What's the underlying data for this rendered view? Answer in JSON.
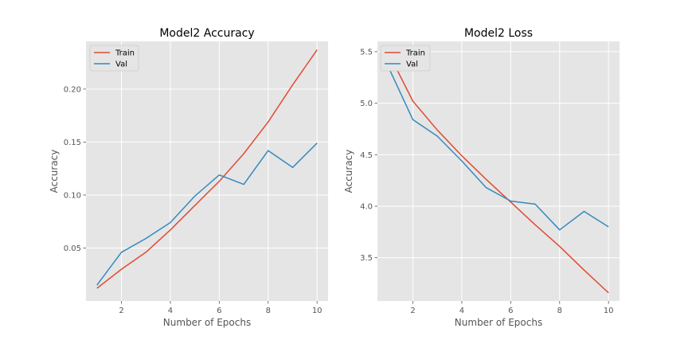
{
  "chart_data": [
    {
      "type": "line",
      "title": "Model2 Accuracy",
      "xlabel": "Number of Epochs",
      "ylabel": "Accuracy",
      "x": [
        1,
        2,
        3,
        4,
        5,
        6,
        7,
        8,
        9,
        10
      ],
      "xlim": [
        0.55,
        10.45
      ],
      "ylim": [
        0.0,
        0.245
      ],
      "xticks": [
        2,
        4,
        6,
        8,
        10
      ],
      "yticks": [
        0.05,
        0.1,
        0.15,
        0.2
      ],
      "xtick_labels": [
        "2",
        "4",
        "6",
        "8",
        "10"
      ],
      "ytick_labels": [
        "0.05",
        "0.10",
        "0.15",
        "0.20"
      ],
      "grid": true,
      "legend": "upper left",
      "series": [
        {
          "name": "Train",
          "color": "#E24A33",
          "values": [
            0.012,
            0.03,
            0.046,
            0.067,
            0.09,
            0.113,
            0.139,
            0.169,
            0.204,
            0.237
          ]
        },
        {
          "name": "Val",
          "color": "#348ABD",
          "values": [
            0.015,
            0.046,
            0.059,
            0.074,
            0.099,
            0.119,
            0.11,
            0.142,
            0.126,
            0.149
          ]
        }
      ]
    },
    {
      "type": "line",
      "title": "Model2 Loss",
      "xlabel": "Number of Epochs",
      "ylabel": "Accuracy",
      "x": [
        1,
        2,
        3,
        4,
        5,
        6,
        7,
        8,
        9,
        10
      ],
      "xlim": [
        0.55,
        10.45
      ],
      "ylim": [
        3.08,
        5.6
      ],
      "xticks": [
        2,
        4,
        6,
        8,
        10
      ],
      "yticks": [
        3.5,
        4.0,
        4.5,
        5.0,
        5.5
      ],
      "xtick_labels": [
        "2",
        "4",
        "6",
        "8",
        "10"
      ],
      "ytick_labels": [
        "3.5",
        "4.0",
        "4.5",
        "5.0",
        "5.5"
      ],
      "grid": true,
      "legend": "upper left",
      "series": [
        {
          "name": "Train",
          "color": "#E24A33",
          "values": [
            5.49,
            5.02,
            4.74,
            4.49,
            4.26,
            4.04,
            3.82,
            3.61,
            3.38,
            3.16
          ]
        },
        {
          "name": "Val",
          "color": "#348ABD",
          "values": [
            5.35,
            4.84,
            4.68,
            4.44,
            4.18,
            4.05,
            4.02,
            3.77,
            3.95,
            3.8
          ]
        }
      ]
    }
  ]
}
